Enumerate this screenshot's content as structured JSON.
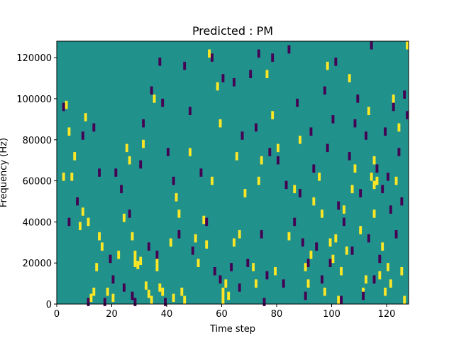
{
  "chart_data": {
    "type": "heatmap",
    "title": "Predicted : PM",
    "xlabel": "Time step",
    "ylabel": "Frequency (Hz)",
    "xlim": [
      0,
      128
    ],
    "ylim": [
      0,
      128000
    ],
    "xticks": [
      0,
      20,
      40,
      60,
      80,
      100,
      120
    ],
    "yticks": [
      0,
      20000,
      40000,
      60000,
      80000,
      100000,
      120000
    ],
    "ytick_labels": [
      "0",
      "20000",
      "40000",
      "60000",
      "80000",
      "100000",
      "120000"
    ],
    "grid": false,
    "value_colors": {
      "low": "#440154",
      "mid": "#21918c",
      "high": "#fde725"
    },
    "cells": {
      "high": [
        [
          2,
          62000
        ],
        [
          3,
          97000
        ],
        [
          4,
          84000
        ],
        [
          5,
          62000
        ],
        [
          6,
          72000
        ],
        [
          8,
          38000
        ],
        [
          9,
          45000
        ],
        [
          10,
          91000
        ],
        [
          11,
          40000
        ],
        [
          12,
          3000
        ],
        [
          13,
          6000
        ],
        [
          14,
          18000
        ],
        [
          15,
          33000
        ],
        [
          16,
          28000
        ],
        [
          18,
          6000
        ],
        [
          20,
          3000
        ],
        [
          22,
          24000
        ],
        [
          24,
          42000
        ],
        [
          25,
          76000
        ],
        [
          26,
          70000
        ],
        [
          27,
          33000
        ],
        [
          28,
          20000
        ],
        [
          28,
          24000
        ],
        [
          29,
          19000
        ],
        [
          30,
          21000
        ],
        [
          31,
          78000
        ],
        [
          32,
          9000
        ],
        [
          33,
          5000
        ],
        [
          34,
          2000
        ],
        [
          35,
          100000
        ],
        [
          36,
          18000
        ],
        [
          36,
          22000
        ],
        [
          37,
          8000
        ],
        [
          38,
          6000
        ],
        [
          41,
          30000
        ],
        [
          42,
          3000
        ],
        [
          43,
          52000
        ],
        [
          44,
          44000
        ],
        [
          45,
          6000
        ],
        [
          46,
          2000
        ],
        [
          48,
          74000
        ],
        [
          50,
          32000
        ],
        [
          51,
          20000
        ],
        [
          53,
          41000
        ],
        [
          54,
          29000
        ],
        [
          55,
          122000
        ],
        [
          56,
          60000
        ],
        [
          58,
          106000
        ],
        [
          59,
          88000
        ],
        [
          60,
          2000
        ],
        [
          60,
          6000
        ],
        [
          61,
          10000
        ],
        [
          62,
          4000
        ],
        [
          64,
          30000
        ],
        [
          65,
          72000
        ],
        [
          66,
          34000
        ],
        [
          68,
          54000
        ],
        [
          71,
          18000
        ],
        [
          72,
          10000
        ],
        [
          73,
          60000
        ],
        [
          74,
          70000
        ],
        [
          76,
          112000
        ],
        [
          78,
          92000
        ],
        [
          79,
          16000
        ],
        [
          80,
          76000
        ],
        [
          84,
          33000
        ],
        [
          86,
          56000
        ],
        [
          88,
          80000
        ],
        [
          90,
          18000
        ],
        [
          91,
          10000
        ],
        [
          92,
          24000
        ],
        [
          93,
          50000
        ],
        [
          95,
          62000
        ],
        [
          96,
          44000
        ],
        [
          97,
          6000
        ],
        [
          98,
          116000
        ],
        [
          99,
          30000
        ],
        [
          100,
          22000
        ],
        [
          101,
          32000
        ],
        [
          102,
          2000
        ],
        [
          103,
          16000
        ],
        [
          104,
          46000
        ],
        [
          105,
          26000
        ],
        [
          106,
          110000
        ],
        [
          107,
          56000
        ],
        [
          108,
          66000
        ],
        [
          110,
          36000
        ],
        [
          111,
          6000
        ],
        [
          112,
          12000
        ],
        [
          113,
          94000
        ],
        [
          114,
          62000
        ],
        [
          115,
          70000
        ],
        [
          115,
          58000
        ],
        [
          115,
          44000
        ],
        [
          116,
          60000
        ],
        [
          117,
          14000
        ],
        [
          118,
          28000
        ],
        [
          119,
          6000
        ],
        [
          120,
          18000
        ],
        [
          121,
          10000
        ],
        [
          122,
          100000
        ],
        [
          123,
          60000
        ],
        [
          124,
          86000
        ],
        [
          125,
          16000
        ],
        [
          126,
          2000
        ],
        [
          127,
          126000
        ]
      ],
      "low": [
        [
          2,
          96000
        ],
        [
          4,
          40000
        ],
        [
          7,
          50000
        ],
        [
          9,
          82000
        ],
        [
          11,
          1000
        ],
        [
          13,
          86000
        ],
        [
          15,
          64000
        ],
        [
          17,
          1000
        ],
        [
          19,
          22000
        ],
        [
          20,
          12000
        ],
        [
          21,
          64000
        ],
        [
          23,
          56000
        ],
        [
          24,
          8000
        ],
        [
          26,
          44000
        ],
        [
          27,
          4000
        ],
        [
          28,
          1000
        ],
        [
          30,
          68000
        ],
        [
          31,
          88000
        ],
        [
          33,
          28000
        ],
        [
          34,
          104000
        ],
        [
          36,
          24000
        ],
        [
          37,
          118000
        ],
        [
          38,
          98000
        ],
        [
          39,
          1000
        ],
        [
          40,
          74000
        ],
        [
          42,
          60000
        ],
        [
          44,
          34000
        ],
        [
          46,
          116000
        ],
        [
          48,
          94000
        ],
        [
          49,
          26000
        ],
        [
          52,
          64000
        ],
        [
          54,
          40000
        ],
        [
          56,
          120000
        ],
        [
          57,
          16000
        ],
        [
          59,
          12000
        ],
        [
          60,
          110000
        ],
        [
          63,
          18000
        ],
        [
          64,
          108000
        ],
        [
          66,
          8000
        ],
        [
          67,
          82000
        ],
        [
          69,
          20000
        ],
        [
          70,
          112000
        ],
        [
          72,
          86000
        ],
        [
          73,
          122000
        ],
        [
          74,
          34000
        ],
        [
          75,
          1000
        ],
        [
          76,
          14000
        ],
        [
          77,
          74000
        ],
        [
          78,
          120000
        ],
        [
          80,
          70000
        ],
        [
          82,
          10000
        ],
        [
          83,
          58000
        ],
        [
          84,
          124000
        ],
        [
          86,
          40000
        ],
        [
          87,
          98000
        ],
        [
          88,
          54000
        ],
        [
          89,
          30000
        ],
        [
          90,
          4000
        ],
        [
          91,
          20000
        ],
        [
          92,
          84000
        ],
        [
          93,
          66000
        ],
        [
          94,
          28000
        ],
        [
          96,
          12000
        ],
        [
          97,
          104000
        ],
        [
          98,
          76000
        ],
        [
          99,
          20000
        ],
        [
          100,
          90000
        ],
        [
          101,
          118000
        ],
        [
          102,
          48000
        ],
        [
          103,
          2000
        ],
        [
          104,
          40000
        ],
        [
          106,
          72000
        ],
        [
          107,
          26000
        ],
        [
          108,
          88000
        ],
        [
          109,
          100000
        ],
        [
          110,
          54000
        ],
        [
          111,
          4000
        ],
        [
          112,
          82000
        ],
        [
          113,
          32000
        ],
        [
          114,
          126000
        ],
        [
          115,
          12000
        ],
        [
          116,
          66000
        ],
        [
          117,
          22000
        ],
        [
          118,
          56000
        ],
        [
          119,
          84000
        ],
        [
          120,
          62000
        ],
        [
          121,
          46000
        ],
        [
          122,
          96000
        ],
        [
          123,
          34000
        ],
        [
          124,
          74000
        ],
        [
          125,
          50000
        ],
        [
          126,
          102000
        ],
        [
          127,
          92000
        ]
      ]
    }
  }
}
